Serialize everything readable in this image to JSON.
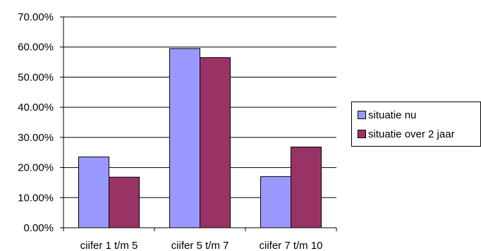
{
  "chart_data": {
    "type": "bar",
    "categories": [
      "ciifer 1 t/m 5",
      "ciifer 5 t/m 7",
      "ciifer 7 t/m 10"
    ],
    "series": [
      {
        "name": "situatie nu",
        "values": [
          23.5,
          59.5,
          17.0
        ],
        "color": "#9999ff"
      },
      {
        "name": "situatie over 2 jaar",
        "values": [
          16.8,
          56.5,
          26.8
        ],
        "color": "#993366"
      }
    ],
    "ylim": [
      0,
      70
    ],
    "yticks": [
      "0.00%",
      "10.00%",
      "20.00%",
      "30.00%",
      "40.00%",
      "50.00%",
      "60.00%",
      "70.00%"
    ],
    "grid": true,
    "legend": "right",
    "title": "",
    "xlabel": "",
    "ylabel": ""
  }
}
